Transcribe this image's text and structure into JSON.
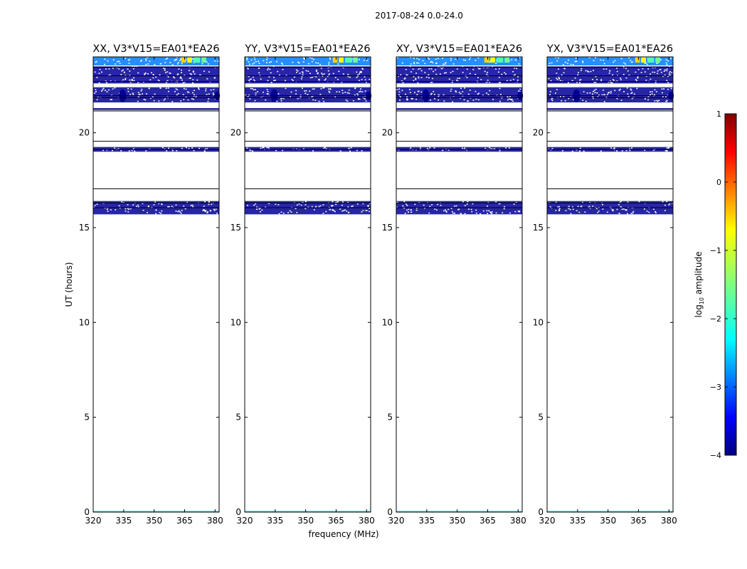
{
  "chart_data": {
    "type": "heatmap",
    "suptitle": "2017-08-24 0.0-24.0",
    "xlabel": "frequency (MHz)",
    "ylabel": "UT (hours)",
    "xlim": [
      320,
      382
    ],
    "ylim": [
      0,
      24
    ],
    "xticks": [
      320,
      335,
      350,
      365,
      380
    ],
    "yticks": [
      0,
      5,
      10,
      15,
      20
    ],
    "colorbar": {
      "label": "log10 amplitude",
      "label_base": "log",
      "label_sub": "10",
      "label_rest": " amplitude",
      "min": -4,
      "max": 1,
      "ticks": [
        -4,
        -3,
        -2,
        -1,
        0,
        1
      ],
      "tick_labels": [
        "−4",
        "−3",
        "−2",
        "−1",
        "0",
        "1"
      ],
      "colormap": "jet"
    },
    "data_value_bands": [
      {
        "ut_from": 23.55,
        "ut_to": 24.0,
        "level": -2.9
      },
      {
        "ut_from": 22.6,
        "ut_to": 23.5,
        "level": -3.9
      },
      {
        "ut_from": 21.6,
        "ut_to": 22.4,
        "level": -3.9
      },
      {
        "ut_from": 21.2,
        "ut_to": 21.3,
        "level": -3.9
      },
      {
        "ut_from": 19.0,
        "ut_to": 19.25,
        "level": -3.9
      },
      {
        "ut_from": 15.7,
        "ut_to": 16.4,
        "level": -3.9
      },
      {
        "ut_from": 0.0,
        "ut_to": 0.06,
        "level": -2.5
      }
    ],
    "high_amplitude_channels": [
      {
        "freq_from": 363,
        "freq_to": 366,
        "level": -0.5
      },
      {
        "freq_from": 366,
        "freq_to": 369,
        "level": -0.7
      },
      {
        "freq_from": 369,
        "freq_to": 373,
        "level": -1.8
      },
      {
        "freq_from": 373,
        "freq_to": 376,
        "level": -1.6
      }
    ],
    "flag_lines_ut": [
      23.45,
      23.0,
      22.7,
      21.95,
      21.85,
      21.15,
      19.55,
      19.12,
      17.05,
      16.3,
      16.05
    ],
    "panels": [
      {
        "title": "XX, V3*V15=EA01*EA26",
        "polarization": "XX"
      },
      {
        "title": "YY, V3*V15=EA01*EA26",
        "polarization": "YY"
      },
      {
        "title": "XY, V3*V15=EA01*EA26",
        "polarization": "XY"
      },
      {
        "title": "YX, V3*V15=EA01*EA26",
        "polarization": "YX"
      }
    ]
  }
}
